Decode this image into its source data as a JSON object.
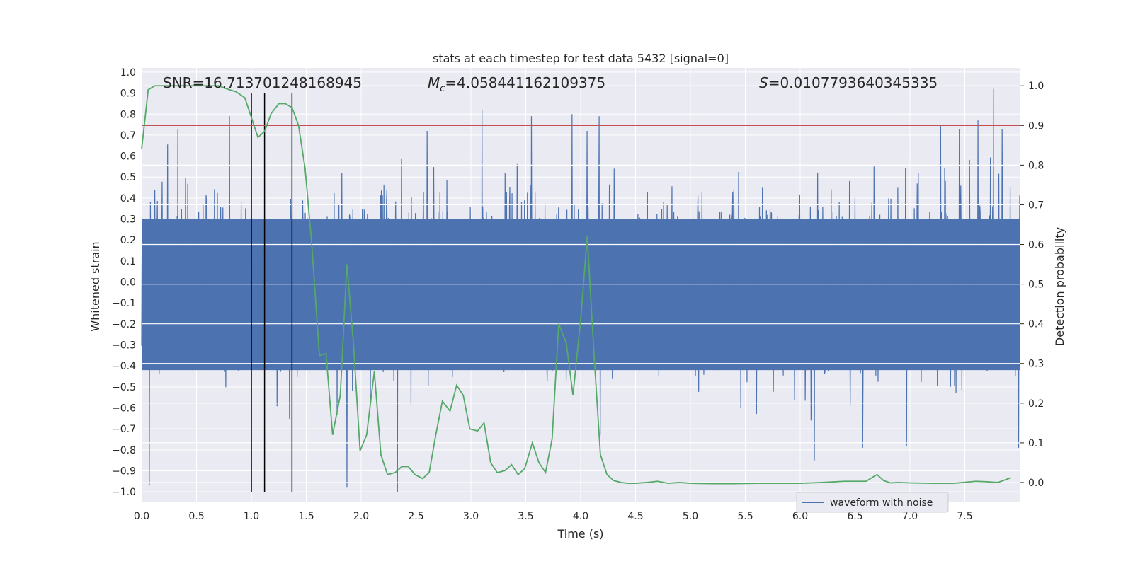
{
  "chart_data": {
    "type": "line",
    "title": "stats at each timestep for test data 5432 [signal=0]",
    "xlabel": "Time (s)",
    "ylabel": "Whitened strain",
    "y2label": "Detection probability",
    "xlim": [
      0.0,
      8.0
    ],
    "ylim": [
      -1.05,
      1.02
    ],
    "y2lim": [
      -0.05,
      1.045
    ],
    "xticks": [
      "0.0",
      "0.5",
      "1.0",
      "1.5",
      "2.0",
      "2.5",
      "3.0",
      "3.5",
      "4.0",
      "4.5",
      "5.0",
      "5.5",
      "6.0",
      "6.5",
      "7.0",
      "7.5"
    ],
    "yticks": [
      "1.0",
      "0.9",
      "0.8",
      "0.7",
      "0.6",
      "0.5",
      "0.4",
      "0.3",
      "0.2",
      "0.1",
      "0.0",
      "-0.1",
      "-0.2",
      "-0.3",
      "-0.4",
      "-0.5",
      "-0.6",
      "-0.7",
      "-0.8",
      "-0.9",
      "-1.0"
    ],
    "y2ticks": [
      "1.0",
      "0.9",
      "0.8",
      "0.7",
      "0.6",
      "0.5",
      "0.4",
      "0.3",
      "0.2",
      "0.1",
      "0.0"
    ],
    "annotations": {
      "snr": "SNR=16.713701248168945",
      "mc_symbol": "M",
      "mc_sub": "c",
      "mc_value": "=4.058441162109375",
      "s_symbol": "S",
      "s_value": "=0.0107793640345335"
    },
    "threshold_y2": 0.9,
    "vertical_lines_x": [
      1.0,
      1.12,
      1.37
    ],
    "vertical_lines_range": [
      -1.0,
      0.9
    ],
    "legend": {
      "label": "waveform with noise",
      "position": "lower-right"
    },
    "colors": {
      "background": "#eaeaf2",
      "grid": "#ffffff",
      "waveform": "#4c72b0",
      "probability": "#55a868",
      "threshold": "#c44e52",
      "vlines": "#000000"
    },
    "series": [
      {
        "name": "Detection probability",
        "axis": "y2",
        "x": [
          0.0,
          0.06,
          0.12,
          0.2,
          0.3,
          0.4,
          0.5,
          0.6,
          0.7,
          0.8,
          0.86,
          0.94,
          1.0,
          1.06,
          1.12,
          1.18,
          1.25,
          1.31,
          1.37,
          1.43,
          1.49,
          1.55,
          1.62,
          1.68,
          1.74,
          1.81,
          1.87,
          1.93,
          1.99,
          2.05,
          2.12,
          2.18,
          2.24,
          2.31,
          2.37,
          2.43,
          2.49,
          2.56,
          2.62,
          2.68,
          2.74,
          2.81,
          2.87,
          2.93,
          2.99,
          3.06,
          3.12,
          3.18,
          3.24,
          3.31,
          3.37,
          3.43,
          3.49,
          3.56,
          3.62,
          3.68,
          3.74,
          3.8,
          3.87,
          3.93,
          4.0,
          4.06,
          4.12,
          4.18,
          4.24,
          4.3,
          4.37,
          4.43,
          4.5,
          4.6,
          4.7,
          4.8,
          4.9,
          5.0,
          5.2,
          5.4,
          5.6,
          5.8,
          6.0,
          6.2,
          6.4,
          6.6,
          6.7,
          6.76,
          6.82,
          6.9,
          7.0,
          7.2,
          7.4,
          7.6,
          7.7,
          7.8,
          7.92
        ],
        "values": [
          0.84,
          0.99,
          1.0,
          1.0,
          1.0,
          1.0,
          1.0,
          1.0,
          1.0,
          0.99,
          0.985,
          0.97,
          0.92,
          0.87,
          0.885,
          0.93,
          0.955,
          0.955,
          0.945,
          0.9,
          0.79,
          0.6,
          0.32,
          0.325,
          0.12,
          0.22,
          0.55,
          0.35,
          0.08,
          0.12,
          0.28,
          0.07,
          0.02,
          0.025,
          0.04,
          0.04,
          0.02,
          0.01,
          0.025,
          0.12,
          0.205,
          0.18,
          0.245,
          0.22,
          0.135,
          0.13,
          0.15,
          0.05,
          0.025,
          0.03,
          0.045,
          0.02,
          0.035,
          0.1,
          0.05,
          0.025,
          0.11,
          0.4,
          0.35,
          0.22,
          0.41,
          0.62,
          0.33,
          0.07,
          0.02,
          0.005,
          0.0,
          -0.002,
          -0.002,
          0.0,
          0.003,
          -0.002,
          0.0,
          -0.002,
          -0.003,
          -0.003,
          -0.002,
          -0.002,
          -0.002,
          0.0,
          0.003,
          0.003,
          0.02,
          0.005,
          -0.001,
          0.0,
          -0.001,
          -0.002,
          -0.002,
          0.003,
          0.002,
          0.0,
          0.012
        ]
      },
      {
        "name": "waveform with noise",
        "axis": "y",
        "x_range": [
          0.0,
          8.0
        ],
        "samples": 2400,
        "spikes": [
          {
            "x": 0.07,
            "y": -0.97
          },
          {
            "x": 0.33,
            "y": 0.73
          },
          {
            "x": 0.8,
            "y": 0.79
          },
          {
            "x": 1.87,
            "y": -0.98
          },
          {
            "x": 2.33,
            "y": -1.0
          },
          {
            "x": 2.6,
            "y": 0.72
          },
          {
            "x": 3.1,
            "y": 0.82
          },
          {
            "x": 3.55,
            "y": 0.79
          },
          {
            "x": 3.92,
            "y": 0.8
          },
          {
            "x": 4.06,
            "y": 0.72
          },
          {
            "x": 4.17,
            "y": 0.79
          },
          {
            "x": 4.18,
            "y": -0.73
          },
          {
            "x": 6.13,
            "y": -0.85
          },
          {
            "x": 6.57,
            "y": -0.79
          },
          {
            "x": 6.97,
            "y": -0.78
          },
          {
            "x": 7.28,
            "y": 0.75
          },
          {
            "x": 7.45,
            "y": 0.73
          },
          {
            "x": 7.62,
            "y": 0.77
          },
          {
            "x": 7.76,
            "y": 0.92
          },
          {
            "x": 7.84,
            "y": 0.73
          },
          {
            "x": 7.99,
            "y": -0.79
          }
        ]
      }
    ]
  }
}
